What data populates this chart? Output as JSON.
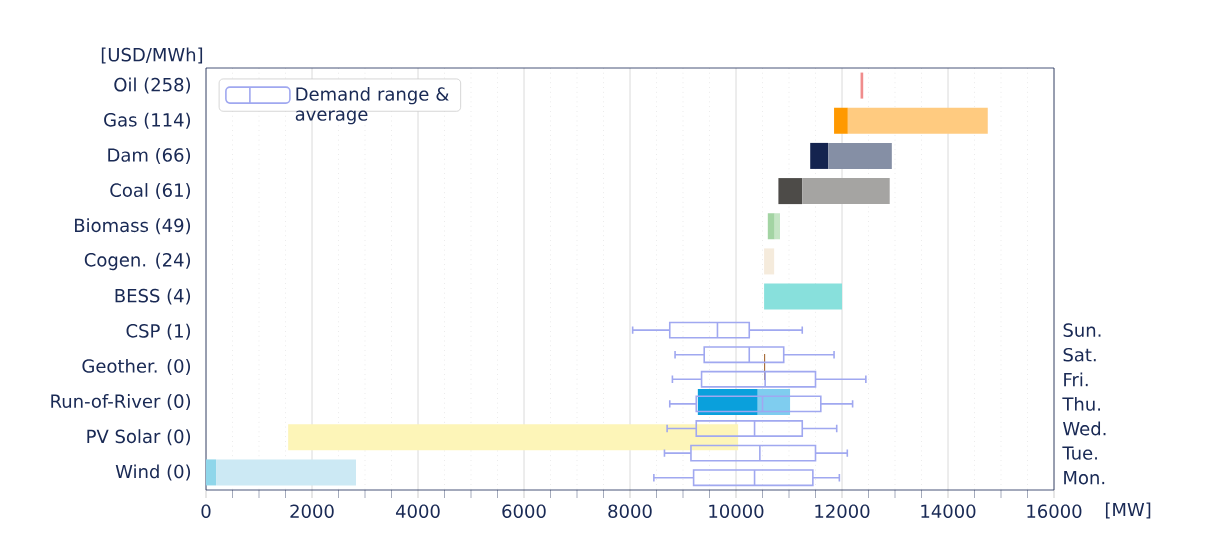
{
  "chart_data": [
    {
      "type": "bar",
      "orientation": "horizontal",
      "xlabel": "[MW]",
      "ylabel": "[USD/MWh]",
      "categories": [
        "Oil (258)",
        "Gas (114)",
        "Dam (66)",
        "Coal (61)",
        "Biomass (49)",
        "Cogen. (24)",
        "BESS (4)",
        "CSP (1)",
        "Geother. (0)",
        "Run-of-River (0)",
        "PV Solar (0)",
        "Wind (0)"
      ],
      "series": [
        {
          "base": [
            12350,
            11850,
            11400,
            10800,
            10600,
            10530,
            10530,
            null,
            10530,
            9280,
            1550,
            0
          ],
          "values": [
            50,
            260,
            340,
            450,
            130,
            190,
            1470,
            null,
            20,
            1130,
            8490,
            190
          ],
          "colors": [
            "#f08c8c",
            "#ff9900",
            "#14244f",
            "#4d4b48",
            "#a3d4a3",
            "#f5ebdc",
            "#88e0dc",
            null,
            "#a0602a",
            "#0aa0dc",
            "#fdf5b8",
            "#8fd6ea"
          ]
        },
        {
          "base": [
            null,
            12110,
            11740,
            11250,
            10730,
            null,
            null,
            null,
            null,
            10410,
            null,
            190
          ],
          "values": [
            null,
            2640,
            1200,
            1650,
            100,
            null,
            null,
            null,
            null,
            610,
            null,
            2640
          ],
          "colors": [
            null,
            "#ffcb80",
            "#858fa5",
            "#a5a4a2",
            "#c5e5c5",
            null,
            null,
            null,
            null,
            "#7fcdef",
            null,
            "#cce9f4"
          ]
        }
      ],
      "xlim": [
        0,
        16000
      ],
      "xticks": [
        0,
        2000,
        4000,
        6000,
        8000,
        10000,
        12000,
        14000,
        16000
      ],
      "grid": "x"
    },
    {
      "type": "box",
      "orientation": "horizontal",
      "categories": [
        "Sun.",
        "Sat.",
        "Fri.",
        "Thu.",
        "Wed.",
        "Tue.",
        "Mon."
      ],
      "series": [
        {
          "name": "Demand range & average",
          "color": "#a0a8f0",
          "boxes": [
            {
              "low": 8050,
              "q1": 8750,
              "median": 9650,
              "q3": 10250,
              "high": 11250
            },
            {
              "low": 8850,
              "q1": 9400,
              "median": 10250,
              "q3": 10900,
              "high": 11850
            },
            {
              "low": 8800,
              "q1": 9350,
              "median": 10550,
              "q3": 11500,
              "high": 12450
            },
            {
              "low": 8750,
              "q1": 9250,
              "median": 10500,
              "q3": 11600,
              "high": 12200
            },
            {
              "low": 8700,
              "q1": 9250,
              "median": 10350,
              "q3": 11250,
              "high": 11900
            },
            {
              "low": 8650,
              "q1": 9150,
              "median": 10450,
              "q3": 11500,
              "high": 12100
            },
            {
              "low": 8450,
              "q1": 9200,
              "median": 10350,
              "q3": 11450,
              "high": 11950
            }
          ]
        }
      ],
      "xlim": [
        0,
        16000
      ],
      "tick_labels": "y",
      "legend": "top left"
    }
  ]
}
